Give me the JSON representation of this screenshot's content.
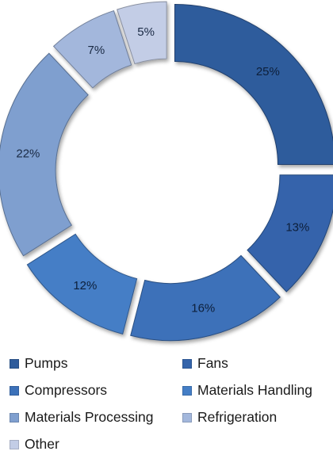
{
  "chart_data": {
    "type": "pie",
    "donut": true,
    "exploded": true,
    "title": "",
    "slices": [
      {
        "label": "Pumps",
        "value": 25,
        "text": "25%",
        "color": "#2e5c9c"
      },
      {
        "label": "Fans",
        "value": 13,
        "text": "13%",
        "color": "#3464ab"
      },
      {
        "label": "Compressors",
        "value": 16,
        "text": "16%",
        "color": "#3c71b9"
      },
      {
        "label": "Materials Handling",
        "value": 12,
        "text": "12%",
        "color": "#447ec6"
      },
      {
        "label": "Materials Processing",
        "value": 22,
        "text": "22%",
        "color": "#7f9fcf"
      },
      {
        "label": "Refrigeration",
        "value": 7,
        "text": "7%",
        "color": "#a3b7dc"
      },
      {
        "label": "Other",
        "value": 5,
        "text": "5%",
        "color": "#c3cde6"
      }
    ],
    "legend": {
      "position": "bottom",
      "items": [
        "Pumps",
        "Fans",
        "Compressors",
        "Materials Handling",
        "Materials Processing",
        "Refrigeration",
        "Other"
      ]
    }
  }
}
